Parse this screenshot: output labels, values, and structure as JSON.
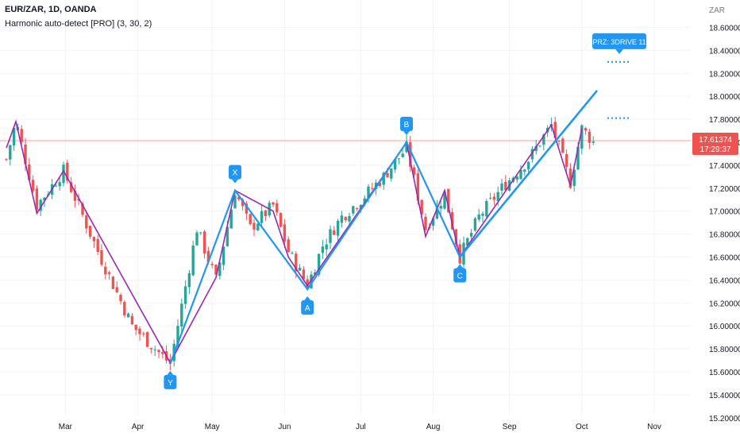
{
  "header": {
    "symbol_line": "EUR/ZAR, 1D, OANDA",
    "indicator_line": "Harmonic auto-detect [PRO] (3, 30, 2)"
  },
  "colors": {
    "up": "#26a69a",
    "down": "#ef5350",
    "zigzag": "#9c27b0",
    "pattern": "#2196f3",
    "price_line": "#f5a3a3"
  },
  "chart_data": {
    "type": "candlestick",
    "title": "EUR/ZAR, 1D, OANDA",
    "y_axis": {
      "unit": "ZAR",
      "ticks": [
        "15.20000",
        "15.40000",
        "15.60000",
        "15.80000",
        "16.00000",
        "16.20000",
        "16.40000",
        "16.60000",
        "16.80000",
        "17.00000",
        "17.20000",
        "17.40000",
        "17.60000",
        "17.80000",
        "18.00000",
        "18.20000",
        "18.40000",
        "18.60000"
      ],
      "range": [
        15.2,
        18.7
      ]
    },
    "x_axis": {
      "months": [
        {
          "label": "Mar",
          "t": 15.5
        },
        {
          "label": "Apr",
          "t": 34.5
        },
        {
          "label": "May",
          "t": 54
        },
        {
          "label": "Jun",
          "t": 73
        },
        {
          "label": "Jul",
          "t": 93
        },
        {
          "label": "Aug",
          "t": 112
        },
        {
          "label": "Sep",
          "t": 132
        },
        {
          "label": "Oct",
          "t": 151
        },
        {
          "label": "Nov",
          "t": 170
        }
      ],
      "range": [
        0,
        185
      ]
    },
    "last_price": {
      "value": 17.61374,
      "label": "17.61374",
      "countdown": "17:29:37"
    },
    "path": [
      [
        0,
        17.45
      ],
      [
        2.5,
        17.78
      ],
      [
        8,
        17.05
      ],
      [
        15,
        17.35
      ],
      [
        24,
        16.65
      ],
      [
        33,
        16.0
      ],
      [
        43,
        15.67
      ],
      [
        50,
        16.85
      ],
      [
        55,
        16.4
      ],
      [
        60,
        17.18
      ],
      [
        64,
        16.85
      ],
      [
        70,
        17.05
      ],
      [
        74,
        16.65
      ],
      [
        79,
        16.35
      ],
      [
        83,
        16.7
      ],
      [
        88,
        16.95
      ],
      [
        93,
        17.1
      ],
      [
        99,
        17.3
      ],
      [
        105,
        17.55
      ],
      [
        110,
        16.85
      ],
      [
        115,
        17.15
      ],
      [
        119,
        16.6
      ],
      [
        124,
        16.95
      ],
      [
        130,
        17.2
      ],
      [
        137,
        17.45
      ],
      [
        143,
        17.75
      ],
      [
        148,
        17.25
      ],
      [
        151,
        17.72
      ],
      [
        154,
        17.6
      ]
    ],
    "zigzag": [
      [
        0,
        17.55
      ],
      [
        2.5,
        17.78
      ],
      [
        8,
        16.98
      ],
      [
        15,
        17.35
      ],
      [
        43,
        15.68
      ],
      [
        55,
        16.42
      ],
      [
        60,
        17.18
      ],
      [
        70,
        17.0
      ],
      [
        74,
        16.6
      ],
      [
        79,
        16.35
      ],
      [
        105,
        17.6
      ],
      [
        110,
        16.78
      ],
      [
        115,
        17.18
      ],
      [
        119,
        16.6
      ],
      [
        143,
        17.75
      ],
      [
        148,
        17.22
      ],
      [
        151,
        17.72
      ]
    ],
    "pattern_xyabc": {
      "Y": [
        43,
        15.67
      ],
      "X": [
        60,
        17.18
      ],
      "A": [
        79,
        16.32
      ],
      "B": [
        105,
        17.6
      ],
      "C": [
        119,
        16.6
      ]
    },
    "projection": {
      "from": [
        119,
        16.6
      ],
      "to": [
        155,
        18.05
      ]
    },
    "prz": {
      "label": "PRZ: 3DRIVE 11",
      "levels": [
        18.3,
        17.81
      ]
    },
    "point_labels": [
      "X",
      "Y",
      "A",
      "B",
      "C"
    ]
  }
}
